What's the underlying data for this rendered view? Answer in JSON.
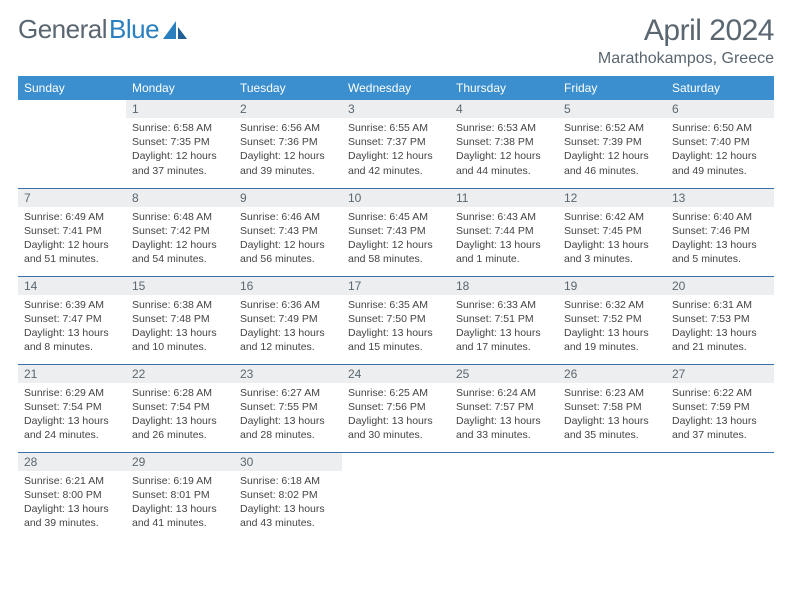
{
  "brand": {
    "part1": "General",
    "part2": "Blue"
  },
  "title": "April 2024",
  "location": "Marathokampos, Greece",
  "colors": {
    "header_bg": "#3b8fce",
    "header_text": "#ffffff",
    "row_border": "#3b6fa8",
    "daynum_bg": "#eceeef",
    "text": "#5a6670"
  },
  "weekdays": [
    "Sunday",
    "Monday",
    "Tuesday",
    "Wednesday",
    "Thursday",
    "Friday",
    "Saturday"
  ],
  "weeks": [
    [
      null,
      {
        "n": "1",
        "sr": "6:58 AM",
        "ss": "7:35 PM",
        "dl": "12 hours and 37 minutes."
      },
      {
        "n": "2",
        "sr": "6:56 AM",
        "ss": "7:36 PM",
        "dl": "12 hours and 39 minutes."
      },
      {
        "n": "3",
        "sr": "6:55 AM",
        "ss": "7:37 PM",
        "dl": "12 hours and 42 minutes."
      },
      {
        "n": "4",
        "sr": "6:53 AM",
        "ss": "7:38 PM",
        "dl": "12 hours and 44 minutes."
      },
      {
        "n": "5",
        "sr": "6:52 AM",
        "ss": "7:39 PM",
        "dl": "12 hours and 46 minutes."
      },
      {
        "n": "6",
        "sr": "6:50 AM",
        "ss": "7:40 PM",
        "dl": "12 hours and 49 minutes."
      }
    ],
    [
      {
        "n": "7",
        "sr": "6:49 AM",
        "ss": "7:41 PM",
        "dl": "12 hours and 51 minutes."
      },
      {
        "n": "8",
        "sr": "6:48 AM",
        "ss": "7:42 PM",
        "dl": "12 hours and 54 minutes."
      },
      {
        "n": "9",
        "sr": "6:46 AM",
        "ss": "7:43 PM",
        "dl": "12 hours and 56 minutes."
      },
      {
        "n": "10",
        "sr": "6:45 AM",
        "ss": "7:43 PM",
        "dl": "12 hours and 58 minutes."
      },
      {
        "n": "11",
        "sr": "6:43 AM",
        "ss": "7:44 PM",
        "dl": "13 hours and 1 minute."
      },
      {
        "n": "12",
        "sr": "6:42 AM",
        "ss": "7:45 PM",
        "dl": "13 hours and 3 minutes."
      },
      {
        "n": "13",
        "sr": "6:40 AM",
        "ss": "7:46 PM",
        "dl": "13 hours and 5 minutes."
      }
    ],
    [
      {
        "n": "14",
        "sr": "6:39 AM",
        "ss": "7:47 PM",
        "dl": "13 hours and 8 minutes."
      },
      {
        "n": "15",
        "sr": "6:38 AM",
        "ss": "7:48 PM",
        "dl": "13 hours and 10 minutes."
      },
      {
        "n": "16",
        "sr": "6:36 AM",
        "ss": "7:49 PM",
        "dl": "13 hours and 12 minutes."
      },
      {
        "n": "17",
        "sr": "6:35 AM",
        "ss": "7:50 PM",
        "dl": "13 hours and 15 minutes."
      },
      {
        "n": "18",
        "sr": "6:33 AM",
        "ss": "7:51 PM",
        "dl": "13 hours and 17 minutes."
      },
      {
        "n": "19",
        "sr": "6:32 AM",
        "ss": "7:52 PM",
        "dl": "13 hours and 19 minutes."
      },
      {
        "n": "20",
        "sr": "6:31 AM",
        "ss": "7:53 PM",
        "dl": "13 hours and 21 minutes."
      }
    ],
    [
      {
        "n": "21",
        "sr": "6:29 AM",
        "ss": "7:54 PM",
        "dl": "13 hours and 24 minutes."
      },
      {
        "n": "22",
        "sr": "6:28 AM",
        "ss": "7:54 PM",
        "dl": "13 hours and 26 minutes."
      },
      {
        "n": "23",
        "sr": "6:27 AM",
        "ss": "7:55 PM",
        "dl": "13 hours and 28 minutes."
      },
      {
        "n": "24",
        "sr": "6:25 AM",
        "ss": "7:56 PM",
        "dl": "13 hours and 30 minutes."
      },
      {
        "n": "25",
        "sr": "6:24 AM",
        "ss": "7:57 PM",
        "dl": "13 hours and 33 minutes."
      },
      {
        "n": "26",
        "sr": "6:23 AM",
        "ss": "7:58 PM",
        "dl": "13 hours and 35 minutes."
      },
      {
        "n": "27",
        "sr": "6:22 AM",
        "ss": "7:59 PM",
        "dl": "13 hours and 37 minutes."
      }
    ],
    [
      {
        "n": "28",
        "sr": "6:21 AM",
        "ss": "8:00 PM",
        "dl": "13 hours and 39 minutes."
      },
      {
        "n": "29",
        "sr": "6:19 AM",
        "ss": "8:01 PM",
        "dl": "13 hours and 41 minutes."
      },
      {
        "n": "30",
        "sr": "6:18 AM",
        "ss": "8:02 PM",
        "dl": "13 hours and 43 minutes."
      },
      null,
      null,
      null,
      null
    ]
  ],
  "labels": {
    "sunrise": "Sunrise:",
    "sunset": "Sunset:",
    "daylight": "Daylight:"
  }
}
